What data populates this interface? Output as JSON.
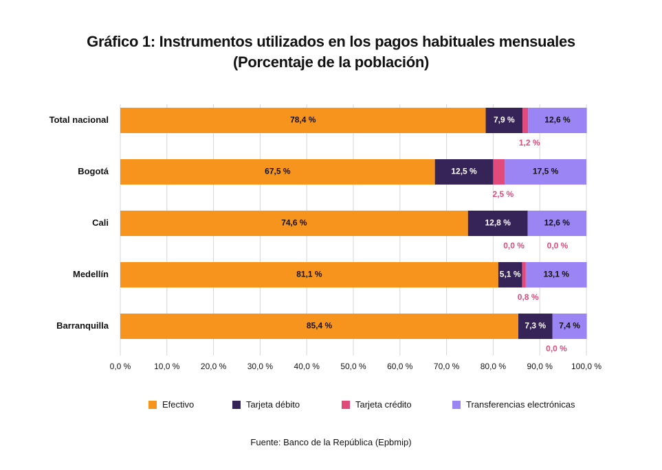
{
  "title_line1": "Gráfico 1: Instrumentos utilizados en los pagos habituales mensuales",
  "title_line2": "(Porcentaje de la población)",
  "source": "Fuente: Banco de la República (Epbmip)",
  "colors": {
    "efectivo": "#F7941D",
    "debito": "#362459",
    "credito": "#E14A7A",
    "transferencias": "#9B85F5"
  },
  "chart_data": {
    "type": "bar",
    "orientation": "horizontal",
    "stacked": true,
    "categories": [
      "Total nacional",
      "Bogotá",
      "Cali",
      "Medellín",
      "Barranquilla"
    ],
    "series": [
      {
        "name": "Efectivo",
        "values": [
          78.4,
          67.5,
          74.6,
          81.1,
          85.4
        ],
        "labels": [
          "78,4 %",
          "67,5 %",
          "74,6 %",
          "81,1 %",
          "85,4 %"
        ]
      },
      {
        "name": "Tarjeta débito",
        "values": [
          7.9,
          12.5,
          12.8,
          5.1,
          7.3
        ],
        "labels": [
          "7,9 %",
          "12,5 %",
          "12,8 %",
          "5,1 %",
          "7,3 %"
        ]
      },
      {
        "name": "Tarjeta crédito",
        "values": [
          1.2,
          2.5,
          0.0,
          0.8,
          0.0
        ],
        "labels": [
          "1,2 %",
          "2,5 %",
          "0,0 %",
          "0,8 %",
          "0,0 %"
        ]
      },
      {
        "name": "Transferencias electrónicas",
        "values": [
          12.6,
          17.5,
          12.6,
          13.1,
          7.4
        ],
        "labels": [
          "12,6 %",
          "17,5 %",
          "12,6 %",
          "13,1 %",
          "7,4 %"
        ]
      }
    ],
    "extra_labels": [
      {
        "category": "Cali",
        "text": "0,0 %"
      }
    ],
    "xlim": [
      0,
      100
    ],
    "xticks": [
      "0,0 %",
      "10,0 %",
      "20,0 %",
      "30,0 %",
      "40,0 %",
      "50,0 %",
      "60,0 %",
      "70,0 %",
      "80,0 %",
      "90,0 %",
      "100,0 %"
    ],
    "grid": true,
    "legend_position": "bottom"
  }
}
